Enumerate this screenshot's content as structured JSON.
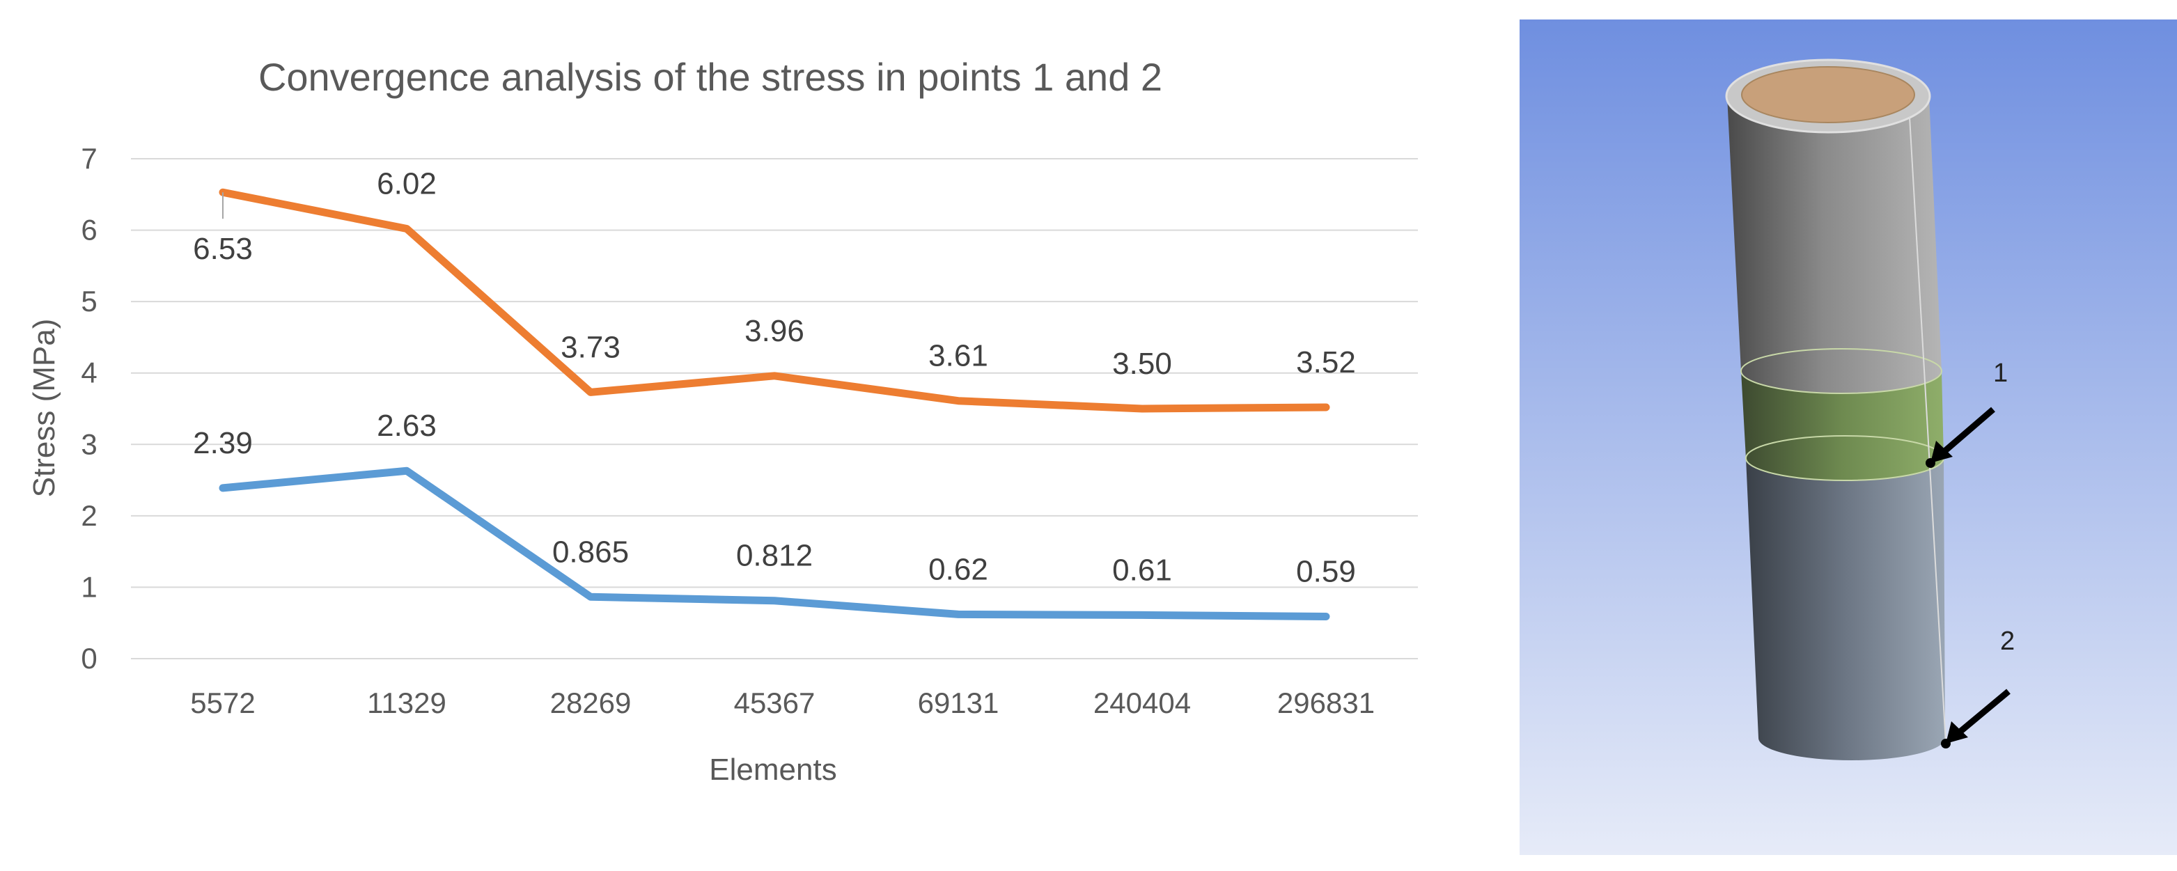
{
  "chart_data": {
    "type": "line",
    "title": "Convergence analysis of the stress in points 1 and 2",
    "xlabel": "Elements",
    "ylabel": "Stress (MPa)",
    "categories": [
      "5572",
      "11329",
      "28269",
      "45367",
      "69131",
      "240404",
      "296831"
    ],
    "ylim": [
      0,
      7
    ],
    "yticks": [
      "0",
      "1",
      "2",
      "3",
      "4",
      "5",
      "6",
      "7"
    ],
    "grid": true,
    "series": [
      {
        "color": "#ed7d31",
        "values": [
          6.53,
          6.02,
          3.73,
          3.96,
          3.61,
          3.5,
          3.52
        ],
        "labels": [
          "6.53",
          "6.02",
          "3.73",
          "3.96",
          "3.61",
          "3.50",
          "3.52"
        ]
      },
      {
        "color": "#5b9bd5",
        "values": [
          2.39,
          2.63,
          0.865,
          0.812,
          0.62,
          0.61,
          0.59
        ],
        "labels": [
          "2.39",
          "2.63",
          "0.865",
          "0.812",
          "0.62",
          "0.61",
          "0.59"
        ]
      }
    ]
  },
  "model": {
    "point_labels": [
      "1",
      "2"
    ],
    "background_top": "#6f8fe0",
    "background_bottom": "#e6ebf8",
    "band_color": "#7fa060"
  }
}
